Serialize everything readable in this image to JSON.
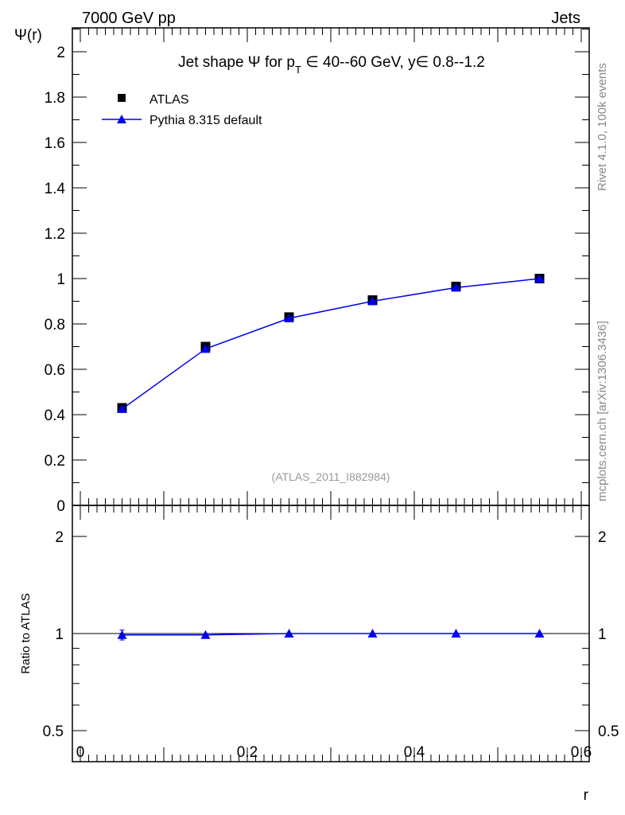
{
  "header": {
    "left": "7000 GeV pp",
    "right": "Jets"
  },
  "side_labels": {
    "rivet": "Rivet 4.1.0,  100k events",
    "mcplots": "mcplots.cern.ch [arXiv:1306.3436]"
  },
  "watermark": "(ATLAS_2011_I882984)",
  "colors": {
    "data": "#000000",
    "mc": "#0000ee",
    "watermark": "#999999",
    "side": "#888888"
  },
  "chart_data": [
    {
      "type": "line",
      "title": "Jet shape Ψ for p_T ∈ 40--60 GeV, y∈ 0.8--1.2",
      "title_parts": {
        "pre": "Jet shape Ψ for p",
        "sub": "T",
        "post": " ∈ 40--60 GeV, y∈ 0.8--1.2"
      },
      "xlabel": "r",
      "ylabel": "Ψ(r)",
      "xlim": [
        -0.01,
        0.61
      ],
      "ylim": [
        0,
        2.1
      ],
      "yticks": [
        "0",
        "0.2",
        "0.4",
        "0.6",
        "0.8",
        "1",
        "1.2",
        "1.4",
        "1.6",
        "1.8",
        "2"
      ],
      "legend": {
        "placement": "top-left",
        "entries": [
          "ATLAS",
          "Pythia 8.315 default"
        ]
      },
      "series": [
        {
          "name": "ATLAS",
          "marker": "square",
          "x": [
            0.05,
            0.15,
            0.25,
            0.35,
            0.45,
            0.55
          ],
          "y": [
            0.43,
            0.7,
            0.83,
            0.905,
            0.965,
            1.0
          ]
        },
        {
          "name": "Pythia 8.315 default",
          "marker": "triangle",
          "x": [
            0.05,
            0.15,
            0.25,
            0.35,
            0.45,
            0.55
          ],
          "y": [
            0.425,
            0.69,
            0.825,
            0.9,
            0.96,
            1.0
          ]
        }
      ]
    },
    {
      "type": "line",
      "ylabel": "Ratio to ATLAS",
      "xlabel": "r",
      "yscale": "log",
      "ylim": [
        0.4,
        2.5
      ],
      "yticks": [
        "0.5",
        "1",
        "2"
      ],
      "xticks": [
        "0",
        "0.2",
        "0.4",
        "0.6"
      ],
      "series": [
        {
          "name": "Pythia 8.315 default",
          "x": [
            0.05,
            0.15,
            0.25,
            0.35,
            0.45,
            0.55
          ],
          "y": [
            0.99,
            0.99,
            1.0,
            1.0,
            1.0,
            1.0
          ],
          "err": [
            0.035,
            0.005,
            0.004,
            0.004,
            0.004,
            0.003
          ]
        }
      ]
    }
  ]
}
